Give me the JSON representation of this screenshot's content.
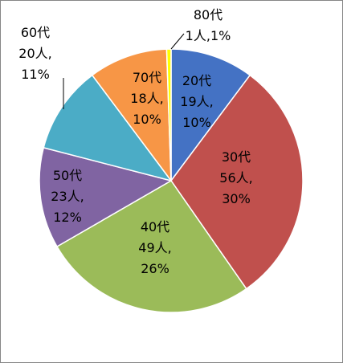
{
  "chart_data": {
    "type": "pie",
    "slices": [
      {
        "category": "20代",
        "count_label": "19人",
        "percent_label": "10%",
        "value": 19,
        "color": "#4472C4"
      },
      {
        "category": "30代",
        "count_label": "56人",
        "percent_label": "30%",
        "value": 56,
        "color": "#C0504D"
      },
      {
        "category": "40代",
        "count_label": "49人",
        "percent_label": "26%",
        "value": 49,
        "color": "#9BBB59"
      },
      {
        "category": "50代",
        "count_label": "23人",
        "percent_label": "12%",
        "value": 23,
        "color": "#8064A2"
      },
      {
        "category": "60代",
        "count_label": "20人",
        "percent_label": "11%",
        "value": 20,
        "color": "#4BACC6"
      },
      {
        "category": "70代",
        "count_label": "18人",
        "percent_label": "10%",
        "value": 18,
        "color": "#F79646"
      },
      {
        "category": "80代",
        "count_label": "1人",
        "percent_label": "1%",
        "value": 1,
        "color": "#FFFF00"
      }
    ],
    "start_angle_deg": 0,
    "direction": "clockwise",
    "legend": "none",
    "grid": false
  }
}
